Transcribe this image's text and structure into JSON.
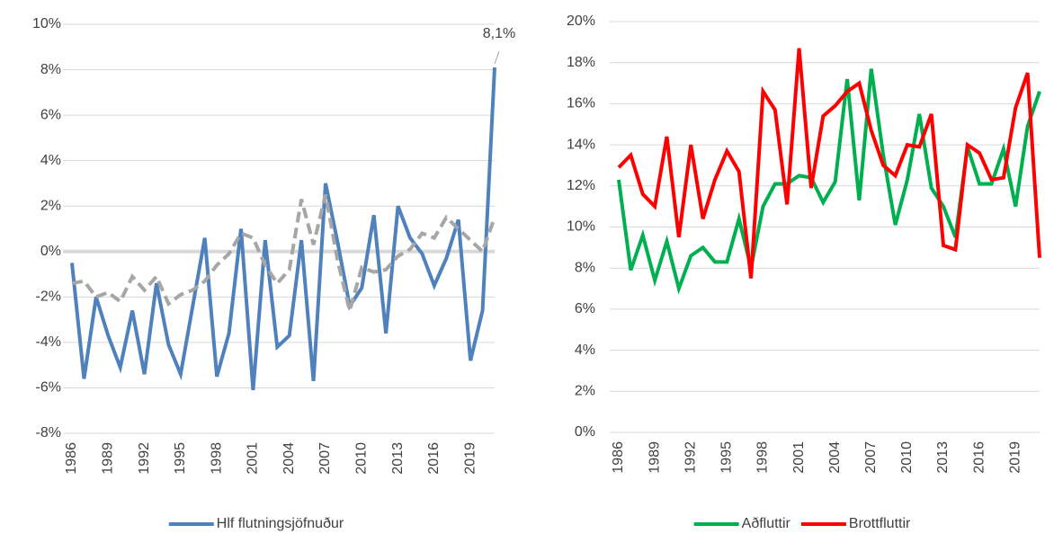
{
  "chart_data": [
    {
      "type": "line",
      "x": [
        1986,
        1987,
        1988,
        1989,
        1990,
        1991,
        1992,
        1993,
        1994,
        1995,
        1996,
        1997,
        1998,
        1999,
        2000,
        2001,
        2002,
        2003,
        2004,
        2005,
        2006,
        2007,
        2008,
        2009,
        2010,
        2011,
        2012,
        2013,
        2014,
        2015,
        2016,
        2017,
        2018,
        2019,
        2020,
        2021
      ],
      "xlim": [
        1986,
        2021
      ],
      "xticks": [
        1986,
        1989,
        1992,
        1995,
        1998,
        2001,
        2004,
        2007,
        2010,
        2013,
        2016,
        2019
      ],
      "ylim": [
        -8,
        10
      ],
      "yticks": [
        {
          "value": -8,
          "label": "-8%"
        },
        {
          "value": -6,
          "label": "-6%"
        },
        {
          "value": -4,
          "label": "-4%"
        },
        {
          "value": -2,
          "label": "-2%"
        },
        {
          "value": 0,
          "label": "0%"
        },
        {
          "value": 2,
          "label": "2%"
        },
        {
          "value": 4,
          "label": "4%"
        },
        {
          "value": 6,
          "label": "6%"
        },
        {
          "value": 8,
          "label": "8%"
        },
        {
          "value": 10,
          "label": "10%"
        }
      ],
      "grid": true,
      "zero_line": true,
      "legend": "bottom",
      "series": [
        {
          "name": "Hlf flutningsjöfnuður",
          "color": "#4f81bd",
          "values": [
            -0.5,
            -5.6,
            -2.0,
            -3.7,
            -5.1,
            -2.6,
            -5.4,
            -1.4,
            -4.1,
            -5.4,
            -2.4,
            0.6,
            -5.5,
            -3.6,
            1.0,
            -6.1,
            0.5,
            -4.2,
            -3.7,
            0.5,
            -5.7,
            3.0,
            0.4,
            -2.4,
            -1.6,
            1.6,
            -3.6,
            2.0,
            0.6,
            -0.1,
            -1.5,
            -0.3,
            1.4,
            -4.8,
            -2.6,
            8.1
          ],
          "value_labels": [
            null,
            null,
            null,
            null,
            null,
            null,
            null,
            null,
            null,
            null,
            null,
            null,
            null,
            null,
            null,
            null,
            null,
            null,
            null,
            null,
            null,
            null,
            null,
            null,
            null,
            null,
            null,
            null,
            null,
            null,
            null,
            null,
            null,
            null,
            null,
            "8,1%"
          ]
        },
        {
          "color": "#a6a6a6",
          "dash": true,
          "values": [
            -1.4,
            -1.3,
            -2.0,
            -1.8,
            -2.2,
            -1.1,
            -1.7,
            -1.1,
            -2.3,
            -1.9,
            -1.7,
            -1.3,
            -0.6,
            -0.1,
            0.8,
            0.6,
            -0.6,
            -1.4,
            -0.8,
            2.3,
            0.3,
            2.5,
            -0.4,
            -2.6,
            -0.7,
            -0.9,
            -0.8,
            -0.2,
            0.1,
            0.8,
            0.6,
            1.5,
            1.0,
            0.5,
            0.0,
            1.5
          ]
        }
      ]
    },
    {
      "type": "line",
      "x": [
        1986,
        1987,
        1988,
        1989,
        1990,
        1991,
        1992,
        1993,
        1994,
        1995,
        1996,
        1997,
        1998,
        1999,
        2000,
        2001,
        2002,
        2003,
        2004,
        2005,
        2006,
        2007,
        2008,
        2009,
        2010,
        2011,
        2012,
        2013,
        2014,
        2015,
        2016,
        2017,
        2018,
        2019,
        2020,
        2021
      ],
      "xlim": [
        1986,
        2021
      ],
      "xticks": [
        1986,
        1989,
        1992,
        1995,
        1998,
        2001,
        2004,
        2007,
        2010,
        2013,
        2016,
        2019
      ],
      "ylim": [
        0,
        20
      ],
      "yticks": [
        {
          "value": 0,
          "label": "0%"
        },
        {
          "value": 2,
          "label": "2%"
        },
        {
          "value": 4,
          "label": "4%"
        },
        {
          "value": 6,
          "label": "6%"
        },
        {
          "value": 8,
          "label": "8%"
        },
        {
          "value": 10,
          "label": "10%"
        },
        {
          "value": 12,
          "label": "12%"
        },
        {
          "value": 14,
          "label": "14%"
        },
        {
          "value": 16,
          "label": "16%"
        },
        {
          "value": 18,
          "label": "18%"
        },
        {
          "value": 20,
          "label": "20%"
        }
      ],
      "grid": true,
      "legend": "bottom",
      "series": [
        {
          "name": "Aðfluttir",
          "color": "#00b050",
          "values": [
            12.3,
            7.9,
            9.6,
            7.4,
            9.3,
            7.0,
            8.6,
            9.0,
            8.3,
            8.3,
            10.4,
            8.0,
            11.0,
            12.1,
            12.1,
            12.5,
            12.4,
            11.2,
            12.2,
            17.2,
            11.3,
            17.7,
            13.5,
            10.1,
            12.3,
            15.5,
            11.9,
            11.0,
            9.5,
            13.9,
            12.1,
            12.1,
            13.8,
            11.0,
            14.9,
            16.6
          ]
        },
        {
          "name": "Brottfluttir",
          "color": "#ff0000",
          "values": [
            12.9,
            13.5,
            11.6,
            11.0,
            14.4,
            9.5,
            14.0,
            10.4,
            12.3,
            13.7,
            12.7,
            7.5,
            16.6,
            15.7,
            11.1,
            18.7,
            11.9,
            15.4,
            15.9,
            16.6,
            17.0,
            14.7,
            13.0,
            12.5,
            14.0,
            13.9,
            15.5,
            9.1,
            8.9,
            14.0,
            13.6,
            12.3,
            12.4,
            15.8,
            17.5,
            8.5
          ]
        }
      ]
    }
  ]
}
